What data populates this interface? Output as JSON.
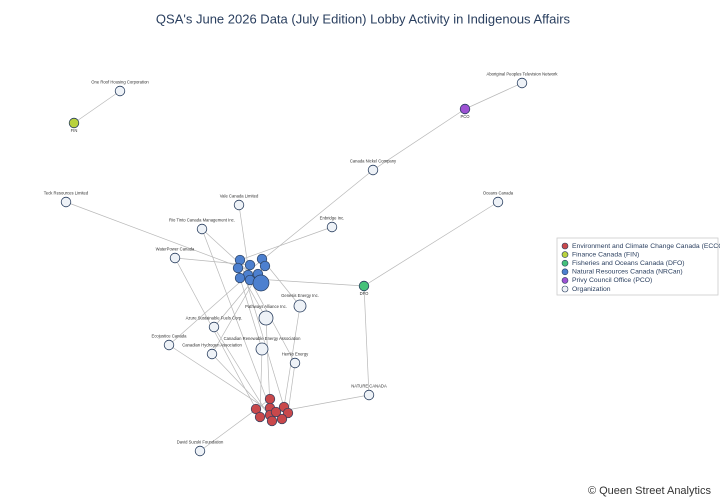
{
  "title": "QSA's June 2026 Data (July Edition) Lobby Activity in Indigenous Affairs",
  "legend": [
    {
      "label": "Environment and Climate Change Canada (ECCC)",
      "color": "#c9484b"
    },
    {
      "label": "Finance Canada (FIN)",
      "color": "#b9d23e"
    },
    {
      "label": "Fisheries and Oceans Canada (DFO)",
      "color": "#45c17a"
    },
    {
      "label": "Natural Resources Canada (NRCan)",
      "color": "#4d80cf"
    },
    {
      "label": "Privy Council Office (PCO)",
      "color": "#9d52d3"
    },
    {
      "label": "Organization",
      "color": "#eef2f7"
    }
  ],
  "nodes": [
    {
      "label": "One Roof Housing Corporation"
    },
    {
      "label": "Aboriginal Peoples Television Network"
    },
    {
      "label": "Canada Nickel Company"
    },
    {
      "label": "Teck Resources Limited"
    },
    {
      "label": "Oceans Canada"
    },
    {
      "label": "Vale Canada Limited"
    },
    {
      "label": "Rio Tinto Canada Management Inc."
    },
    {
      "label": "Enbridge Inc."
    },
    {
      "label": "WaterPower Canada"
    },
    {
      "label": "Genesis Energy Inc."
    },
    {
      "label": "Pathways Alliance Inc."
    },
    {
      "label": "Azure Sustainable Fuels Corp."
    },
    {
      "label": "Ecojustice Canada"
    },
    {
      "label": "Canadian Renewable Energy Association"
    },
    {
      "label": "Canadian Hydrogen Association"
    },
    {
      "label": "Hemlo Energy"
    },
    {
      "label": "NATURE CANADA"
    },
    {
      "label": "David Suzuki Foundation"
    },
    {
      "label": "FIN"
    },
    {
      "label": "PCO"
    },
    {
      "label": "DFO"
    }
  ],
  "footer": "© Queen Street Analytics"
}
